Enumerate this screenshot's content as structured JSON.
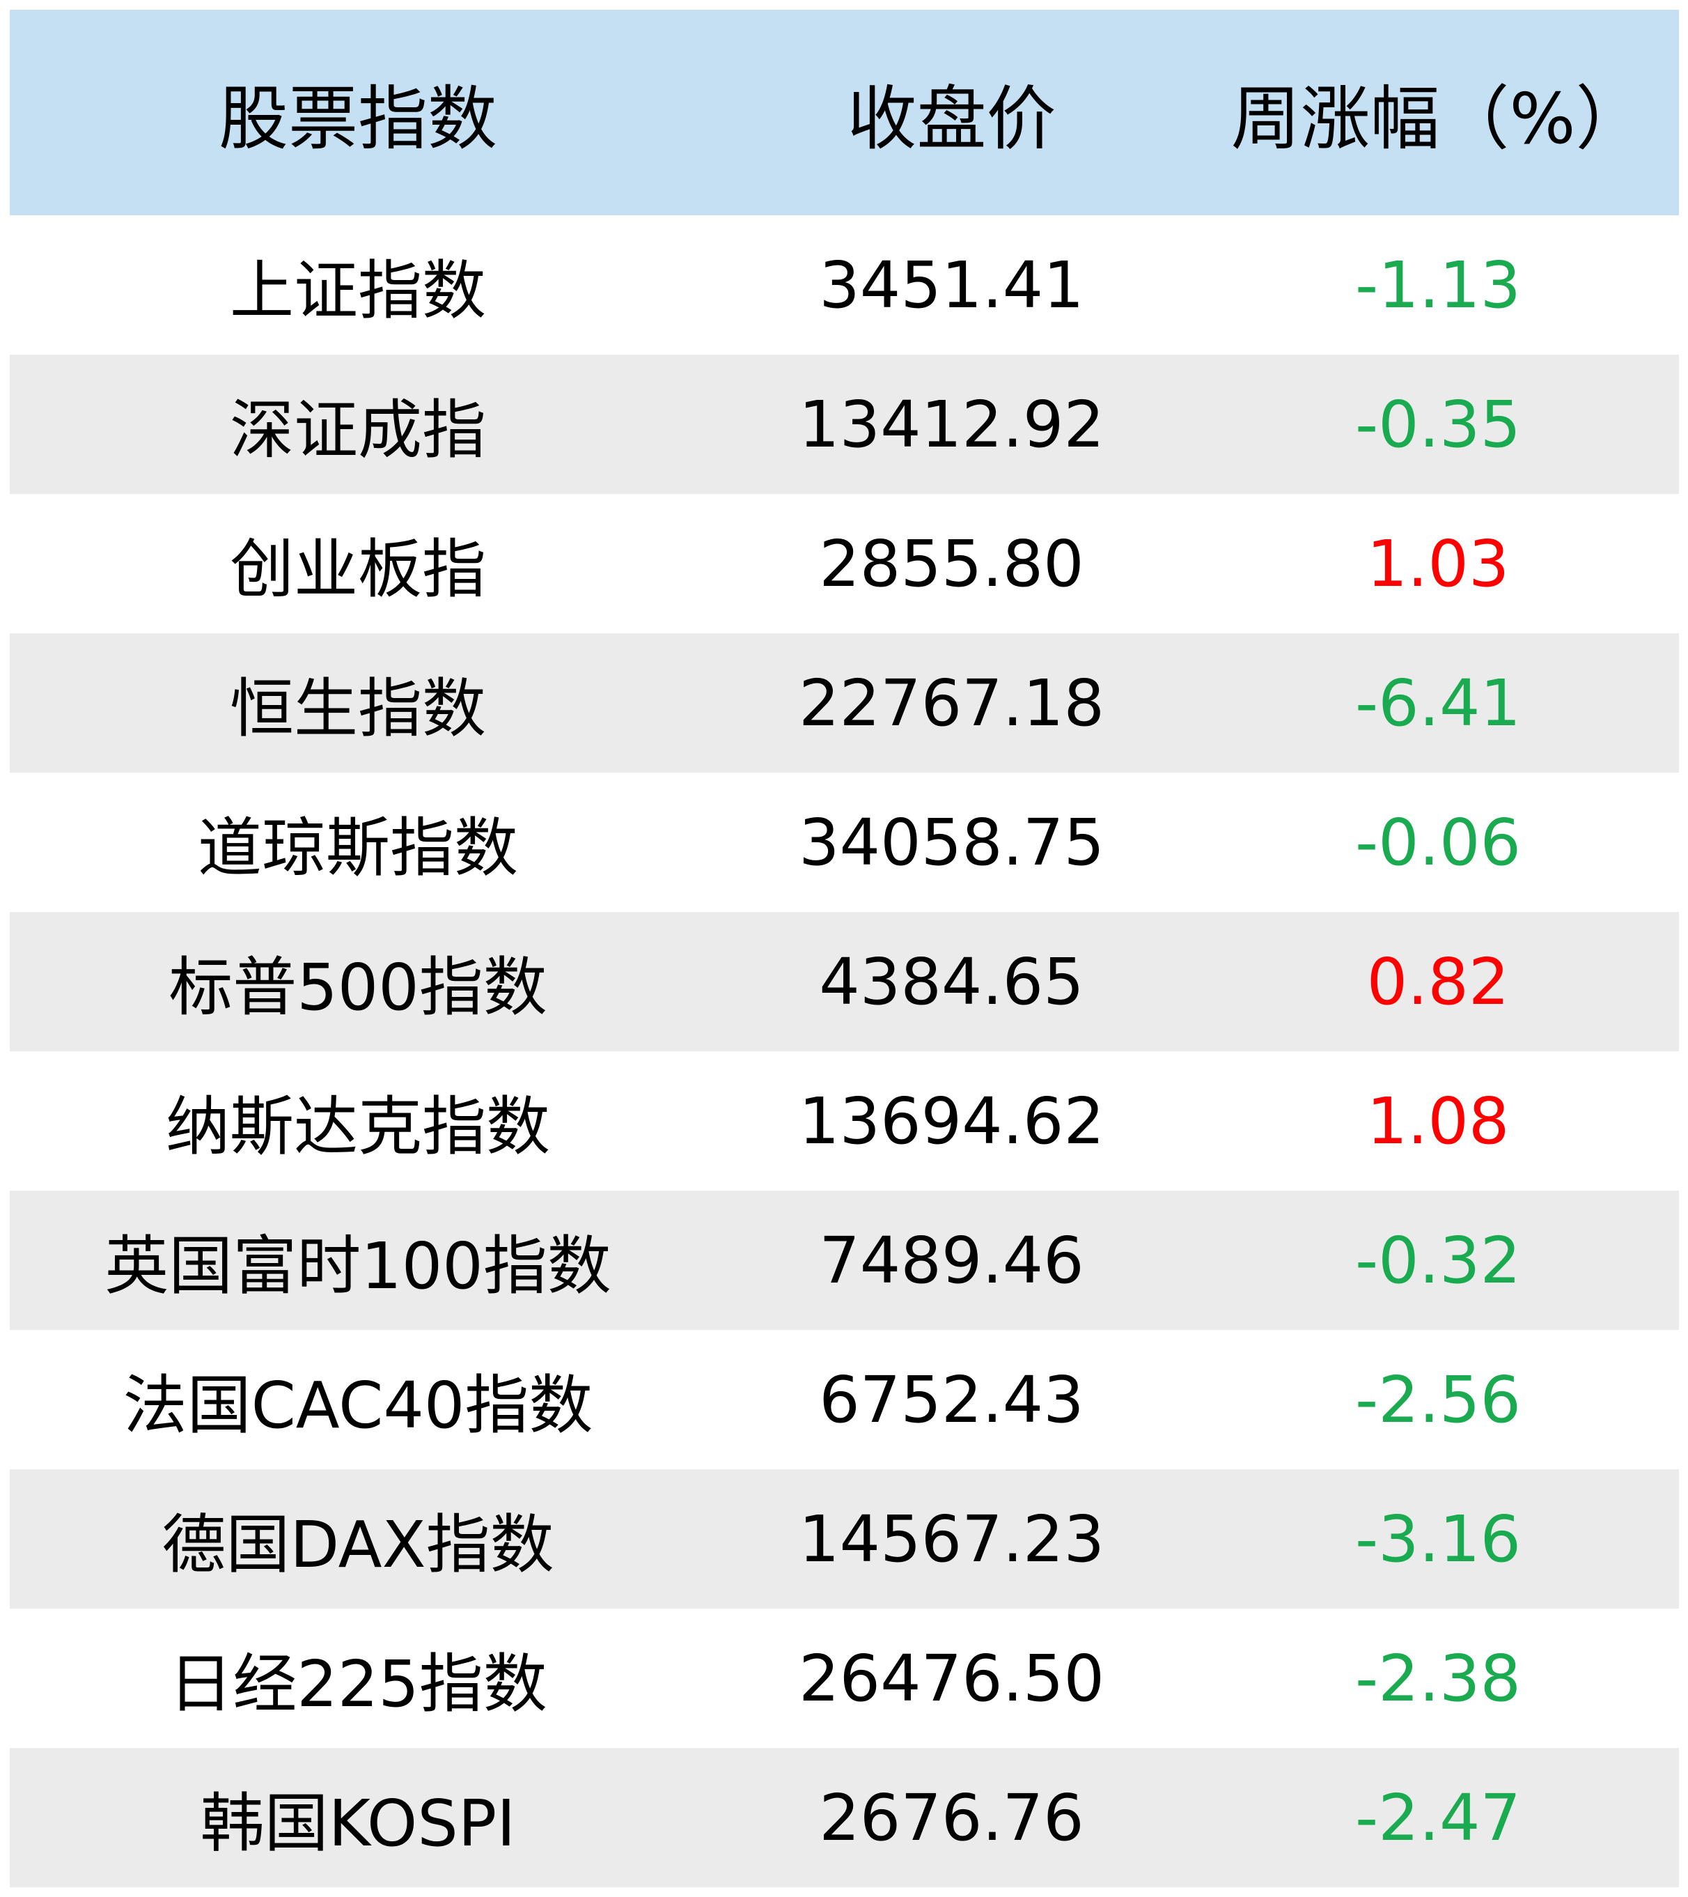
{
  "table": {
    "header": [
      "股票指数",
      "收盘价",
      "周涨幅（%）"
    ],
    "rows": [
      [
        "上证指数",
        "3451.41",
        "-1.13"
      ],
      [
        "深证成指",
        "13412.92",
        "-0.35"
      ],
      [
        "创业板指",
        "2855.80",
        "1.03"
      ],
      [
        "恒生指数",
        "22767.18",
        "-6.41"
      ],
      [
        "道琼斯指数",
        "34058.75",
        "-0.06"
      ],
      [
        "标普500指数",
        "4384.65",
        "0.82"
      ],
      [
        "纳斯达克指数",
        "13694.62",
        "1.08"
      ],
      [
        "英国富时100指数",
        "7489.46",
        "-0.32"
      ],
      [
        "法国CAC40指数",
        "6752.43",
        "-2.56"
      ],
      [
        "德国DAX指数",
        "14567.23",
        "-3.16"
      ],
      [
        "日经225指数",
        "26476.50",
        "-2.38"
      ],
      [
        "韩国KOSPI",
        "2676.76",
        "-2.47"
      ]
    ],
    "up_color": "#ff0000",
    "down_color": "#1aaa50"
  }
}
